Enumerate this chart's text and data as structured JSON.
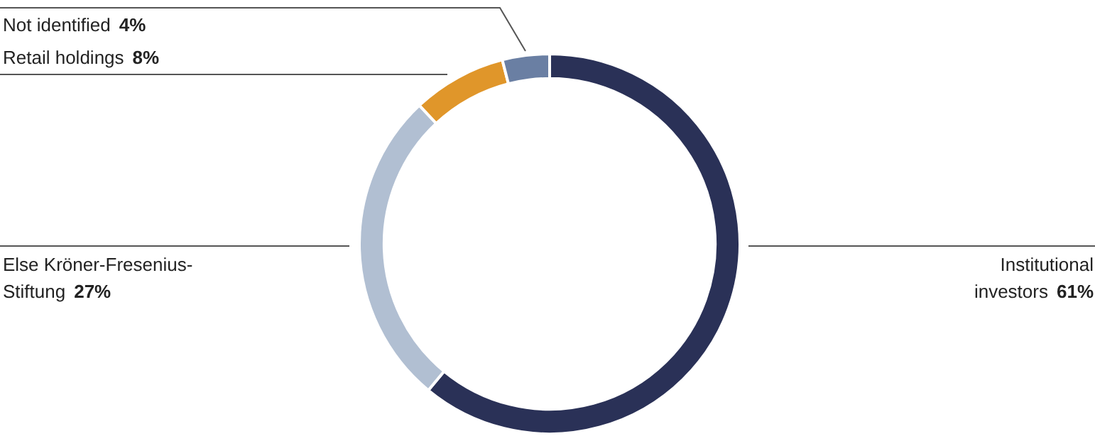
{
  "chart_data": {
    "type": "donut",
    "categories": [
      "Institutional investors",
      "Else Kröner-Fresenius-Stiftung",
      "Retail holdings",
      "Not identified"
    ],
    "values": [
      61,
      27,
      8,
      4
    ],
    "value_labels": [
      "61%",
      "27%",
      "8%",
      "4%"
    ],
    "colors": [
      "#2a3157",
      "#b1bfd2",
      "#e0962a",
      "#6a7fa3"
    ],
    "legend": false
  }
}
